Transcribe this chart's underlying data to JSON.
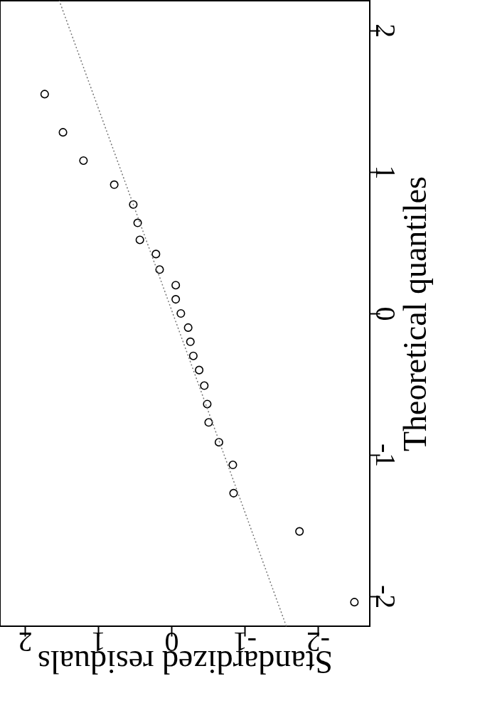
{
  "chart_data": {
    "type": "scatter",
    "xlabel": "Standardized residuals",
    "ylabel": "Theoretical quantiles",
    "xlim": [
      2.34,
      -2.71
    ],
    "ylim": [
      -2.21,
      2.21
    ],
    "xticks": [
      -2,
      -1,
      0,
      1,
      2
    ],
    "yticks": [
      -2,
      -1,
      0,
      1,
      2
    ],
    "grid": false,
    "series": [
      {
        "color": "#000000",
        "marker": "circle",
        "x": [
          -2.5,
          -1.75,
          -0.85,
          -0.84,
          -0.65,
          -0.51,
          -0.49,
          -0.45,
          -0.38,
          -0.3,
          -0.26,
          -0.23,
          -0.13,
          -0.06,
          -0.06,
          0.16,
          0.21,
          0.43,
          0.46,
          0.52,
          0.78,
          1.2,
          1.48,
          1.73
        ],
        "values": [
          -2.04,
          -1.54,
          -1.27,
          -1.07,
          -0.91,
          -0.77,
          -0.64,
          -0.51,
          -0.4,
          -0.3,
          -0.2,
          -0.1,
          0.0,
          0.1,
          0.2,
          0.31,
          0.42,
          0.52,
          0.64,
          0.77,
          0.91,
          1.08,
          1.28,
          1.55
        ]
      },
      {
        "type": "line",
        "color": "#777777",
        "line_style": "dotted",
        "x": [
          -1.57,
          1.53
        ],
        "values": [
          -2.21,
          2.21
        ]
      }
    ]
  }
}
